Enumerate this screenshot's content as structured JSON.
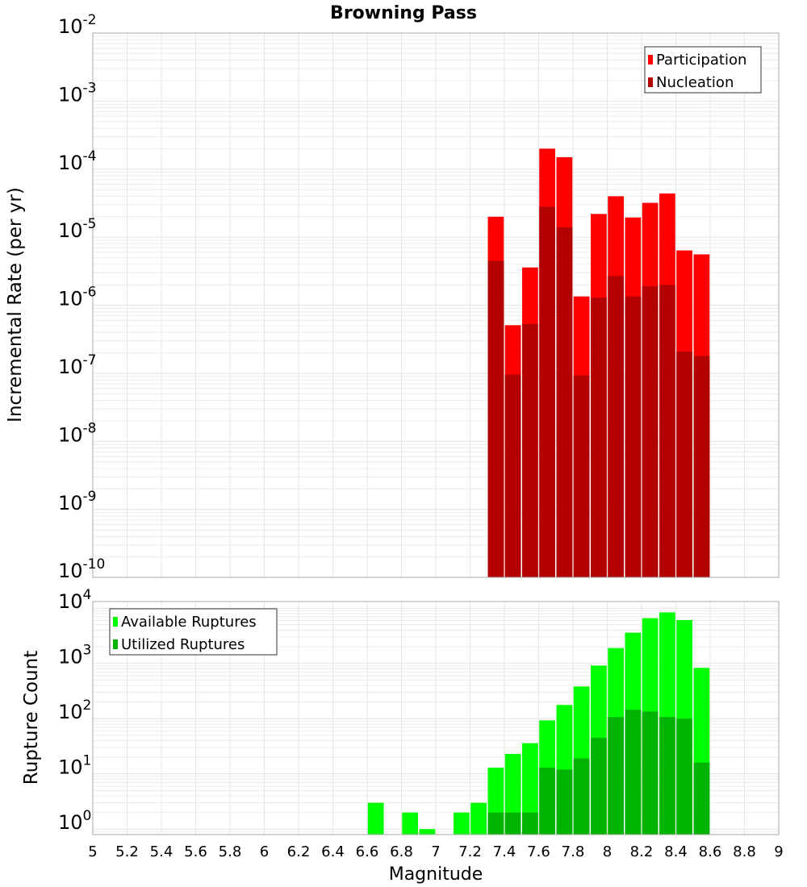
{
  "chart_data": [
    {
      "type": "bar",
      "title": "Browning Pass",
      "xlabel": "Magnitude",
      "ylabel": "Incremental Rate (per yr)",
      "yscale": "log",
      "ylim": [
        1e-10,
        0.01
      ],
      "xlim": [
        5,
        9
      ],
      "bin_width": 0.1,
      "x": [
        7.35,
        7.45,
        7.55,
        7.65,
        7.75,
        7.85,
        7.95,
        8.05,
        8.15,
        8.25,
        8.35,
        8.45,
        8.55
      ],
      "series": [
        {
          "name": "Participation",
          "color": "#ff0000",
          "values": [
            2e-05,
            5.1e-07,
            3.6e-06,
            0.0002,
            0.00015,
            1.35e-06,
            2.2e-05,
            4e-05,
            1.95e-05,
            3.2e-05,
            4.4e-05,
            6.4e-06,
            5.6e-06
          ]
        },
        {
          "name": "Nucleation",
          "color": "#b30000",
          "values": [
            4.5e-06,
            9.6e-08,
            5.3e-07,
            2.8e-05,
            1.4e-05,
            9.3e-08,
            1.3e-06,
            2.7e-06,
            1.35e-06,
            1.9e-06,
            2e-06,
            2.1e-07,
            1.8e-07
          ]
        }
      ],
      "yticks": [
        {
          "base": "10",
          "exp": "-2"
        },
        {
          "base": "10",
          "exp": "-3"
        },
        {
          "base": "10",
          "exp": "-4"
        },
        {
          "base": "10",
          "exp": "-5"
        },
        {
          "base": "10",
          "exp": "-6"
        },
        {
          "base": "10",
          "exp": "-7"
        },
        {
          "base": "10",
          "exp": "-8"
        },
        {
          "base": "10",
          "exp": "-9"
        },
        {
          "base": "10",
          "exp": "-10"
        }
      ],
      "legend": "top-right",
      "grid": true
    },
    {
      "type": "bar",
      "xlabel": "Magnitude",
      "ylabel": "Rupture Count",
      "yscale": "log",
      "ylim": [
        0.8,
        13000
      ],
      "xlim": [
        5,
        9
      ],
      "bin_width": 0.1,
      "x": [
        6.65,
        6.85,
        6.95,
        7.15,
        7.25,
        7.35,
        7.45,
        7.55,
        7.65,
        7.75,
        7.85,
        7.95,
        8.05,
        8.15,
        8.25,
        8.35,
        8.45,
        8.55
      ],
      "series": [
        {
          "name": "Available Ruptures",
          "color": "#00ff00",
          "values": [
            3,
            2,
            1,
            2,
            3,
            13,
            23,
            36,
            93,
            177,
            382,
            915,
            1900,
            3600,
            6600,
            8400,
            6100,
            830
          ]
        },
        {
          "name": "Utilized Ruptures",
          "color": "#00b300",
          "values": [
            0,
            0,
            0,
            0,
            0,
            2,
            2,
            2,
            13,
            12,
            19,
            45,
            107,
            145,
            135,
            107,
            100,
            16
          ]
        }
      ],
      "yticks": [
        {
          "base": "10",
          "exp": "4"
        },
        {
          "base": "10",
          "exp": "3"
        },
        {
          "base": "10",
          "exp": "2"
        },
        {
          "base": "10",
          "exp": "1"
        },
        {
          "base": "10",
          "exp": "0"
        }
      ],
      "xticks": [
        "5",
        "5.2",
        "5.4",
        "5.6",
        "5.8",
        "6",
        "6.2",
        "6.4",
        "6.6",
        "6.8",
        "7",
        "7.2",
        "7.4",
        "7.6",
        "7.8",
        "8",
        "8.2",
        "8.4",
        "8.6",
        "8.8",
        "9"
      ],
      "legend": "top-left",
      "grid": true
    }
  ]
}
